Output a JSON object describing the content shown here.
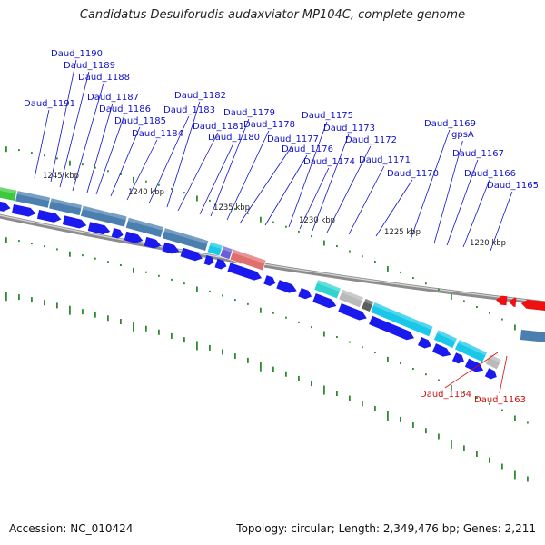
{
  "title": "Candidatus Desulforudis audaxviator MP104C, complete genome",
  "footer": {
    "accession_label": "Accession:",
    "accession": "NC_010424",
    "topology_label": "Topology:",
    "topology": "circular",
    "length_label": "Length:",
    "length": "2,349,476 bp",
    "genes_label": "Genes:",
    "genes": "2,211"
  },
  "colors": {
    "gene_blue": "#1a1aee",
    "gene_red": "#ee1111",
    "label_blue": "#1010cc",
    "label_red": "#cc1111",
    "tick_green": "#2e8b2e",
    "steel_blue": "#4a7fb0",
    "cyan": "#19c8e8",
    "teal": "#2fd4cf",
    "grey": "#b9b9b9",
    "dark_grey": "#5e5e5e",
    "salmon": "#e07070",
    "purple": "#6b5fd8",
    "green": "#3ec83e",
    "backbone": "#8c8c8c"
  },
  "scale_labels": [
    "1245 kbp",
    "1240 kbp",
    "1235 kbp",
    "1230 kbp",
    "1225 kbp",
    "1220 kbp"
  ],
  "genes_top_strand": [
    "Daud_1191",
    "Daud_1190",
    "Daud_1189",
    "Daud_1188",
    "Daud_1187",
    "Daud_1186",
    "Daud_1185",
    "Daud_1184",
    "Daud_1183",
    "Daud_1182",
    "Daud_1181",
    "Daud_1180",
    "Daud_1179",
    "Daud_1178",
    "Daud_1177",
    "Daud_1176",
    "Daud_1175",
    "Daud_1174",
    "Daud_1173",
    "Daud_1172",
    "Daud_1171",
    "Daud_1170",
    "Daud_1169",
    "gpsA",
    "Daud_1167",
    "Daud_1166",
    "Daud_1165"
  ],
  "genes_bottom_strand": [
    "Daud_1164",
    "Daud_1163"
  ]
}
